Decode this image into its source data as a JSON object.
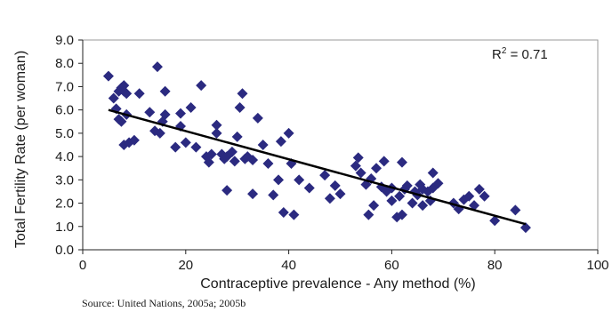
{
  "chart_data": {
    "type": "scatter",
    "title": "",
    "xlabel": "Contraceptive prevalence - Any method (%)",
    "ylabel": "Total Fertility Rate (per woman)",
    "xlim": [
      0,
      100
    ],
    "ylim": [
      0,
      9
    ],
    "x_ticks": [
      0,
      20,
      40,
      60,
      80,
      100
    ],
    "x_tick_labels": [
      "0",
      "20",
      "40",
      "60",
      "80",
      "100"
    ],
    "y_ticks": [
      0,
      1,
      2,
      3,
      4,
      5,
      6,
      7,
      8,
      9
    ],
    "y_tick_labels": [
      "0.0",
      "1.0",
      "2.0",
      "3.0",
      "4.0",
      "5.0",
      "6.0",
      "7.0",
      "8.0",
      "9.0"
    ],
    "grid": false,
    "marker": "diamond",
    "marker_color": "#2b2a80",
    "trendline": {
      "x": [
        5,
        86
      ],
      "y": [
        6.0,
        1.1
      ],
      "color": "#000000"
    },
    "annotation": {
      "prefix": "R",
      "superscript": "2",
      "suffix": " = 0.71",
      "position": "top-right"
    },
    "points": [
      [
        5,
        7.45
      ],
      [
        6,
        6.5
      ],
      [
        6.5,
        6.05
      ],
      [
        7,
        5.6
      ],
      [
        7,
        6.8
      ],
      [
        7.5,
        6.95
      ],
      [
        8,
        7.05
      ],
      [
        8,
        6.8
      ],
      [
        8.5,
        6.7
      ],
      [
        7.5,
        5.5
      ],
      [
        8.5,
        5.8
      ],
      [
        8,
        4.5
      ],
      [
        9,
        4.6
      ],
      [
        10,
        4.7
      ],
      [
        11,
        6.7
      ],
      [
        13,
        5.9
      ],
      [
        14,
        5.1
      ],
      [
        14.5,
        7.85
      ],
      [
        15,
        5.0
      ],
      [
        15.5,
        5.5
      ],
      [
        16,
        6.8
      ],
      [
        16,
        5.8
      ],
      [
        18,
        4.4
      ],
      [
        19,
        5.3
      ],
      [
        19,
        5.85
      ],
      [
        20,
        4.6
      ],
      [
        21,
        6.1
      ],
      [
        22,
        4.4
      ],
      [
        23,
        7.05
      ],
      [
        24,
        4.0
      ],
      [
        24.5,
        3.75
      ],
      [
        25,
        4.1
      ],
      [
        26,
        5.0
      ],
      [
        26,
        5.35
      ],
      [
        27,
        4.1
      ],
      [
        27.5,
        3.9
      ],
      [
        28,
        4.0
      ],
      [
        28,
        2.55
      ],
      [
        29,
        4.2
      ],
      [
        29.5,
        3.8
      ],
      [
        30,
        4.85
      ],
      [
        30.5,
        6.1
      ],
      [
        31,
        6.7
      ],
      [
        31.5,
        3.9
      ],
      [
        32,
        4.0
      ],
      [
        33,
        3.85
      ],
      [
        33,
        2.4
      ],
      [
        34,
        5.65
      ],
      [
        35,
        4.5
      ],
      [
        36,
        3.7
      ],
      [
        37,
        2.35
      ],
      [
        38,
        3.0
      ],
      [
        38.5,
        4.65
      ],
      [
        39,
        1.6
      ],
      [
        40,
        5.0
      ],
      [
        40.5,
        3.7
      ],
      [
        41,
        1.5
      ],
      [
        42,
        3.0
      ],
      [
        44,
        2.65
      ],
      [
        47,
        3.2
      ],
      [
        48,
        2.2
      ],
      [
        49,
        2.75
      ],
      [
        50,
        2.4
      ],
      [
        53,
        3.6
      ],
      [
        53.5,
        3.95
      ],
      [
        54,
        3.3
      ],
      [
        55,
        2.8
      ],
      [
        55.5,
        1.5
      ],
      [
        56,
        3.05
      ],
      [
        56.5,
        1.9
      ],
      [
        57,
        3.5
      ],
      [
        58,
        2.7
      ],
      [
        58.5,
        3.8
      ],
      [
        59,
        2.5
      ],
      [
        60,
        2.1
      ],
      [
        60,
        2.65
      ],
      [
        61,
        1.4
      ],
      [
        61.5,
        2.3
      ],
      [
        62,
        1.5
      ],
      [
        62,
        3.75
      ],
      [
        62.5,
        2.6
      ],
      [
        63,
        2.75
      ],
      [
        64,
        2.0
      ],
      [
        64.5,
        2.5
      ],
      [
        65,
        2.35
      ],
      [
        65.5,
        2.8
      ],
      [
        66,
        2.6
      ],
      [
        66,
        1.9
      ],
      [
        67,
        2.5
      ],
      [
        67.5,
        2.1
      ],
      [
        68,
        2.65
      ],
      [
        68,
        3.3
      ],
      [
        69,
        2.85
      ],
      [
        72,
        2.0
      ],
      [
        73,
        1.75
      ],
      [
        74,
        2.15
      ],
      [
        75,
        2.3
      ],
      [
        76,
        1.9
      ],
      [
        77,
        2.6
      ],
      [
        78,
        2.3
      ],
      [
        80,
        1.25
      ],
      [
        84,
        1.7
      ],
      [
        86,
        0.95
      ]
    ]
  },
  "source_note": "Source: United Nations, 2005a; 2005b"
}
